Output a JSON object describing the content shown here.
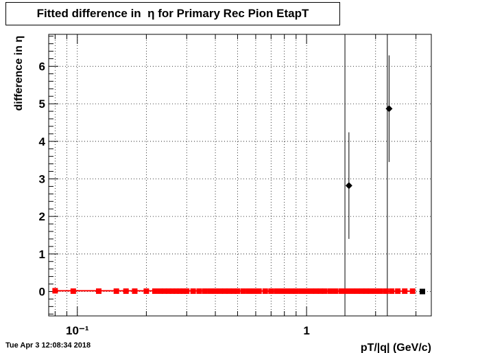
{
  "chart_data": {
    "type": "scatter",
    "title": "Fitted difference in  η for Primary Rec Pion EtapT",
    "xlabel": "pT/|q| (GeV/c)",
    "ylabel": "difference in  η",
    "x_scale": "log",
    "xlim": [
      0.075,
      3.5
    ],
    "ylim": [
      -0.65,
      6.85
    ],
    "grid": true,
    "x_tick_labels": [
      {
        "value": 0.1,
        "label": "10⁻¹"
      },
      {
        "value": 1,
        "label": "1"
      }
    ],
    "y_ticks": [
      0,
      1,
      2,
      3,
      4,
      5,
      6
    ],
    "vertical_lines": [
      1.47,
      2.25
    ],
    "series": [
      {
        "color": "#ff0000",
        "marker": "square",
        "x": [
          0.08,
          0.096,
          0.124,
          0.148,
          0.163,
          0.178,
          0.2,
          0.218,
          0.23,
          0.24,
          0.25,
          0.26,
          0.27,
          0.28,
          0.29,
          0.3,
          0.32,
          0.34,
          0.36,
          0.38,
          0.4,
          0.42,
          0.44,
          0.46,
          0.48,
          0.5,
          0.53,
          0.56,
          0.59,
          0.62,
          0.66,
          0.7,
          0.74,
          0.78,
          0.82,
          0.86,
          0.9,
          0.95,
          1.0,
          1.05,
          1.1,
          1.15,
          1.2,
          1.27,
          1.34,
          1.42,
          1.5,
          1.58,
          1.66,
          1.74,
          1.82,
          1.9,
          2.0,
          2.1,
          2.22,
          2.35,
          2.5,
          2.68,
          2.9
        ],
        "y": [
          0.02,
          0.01,
          0.01,
          0.01,
          0.01,
          0.01,
          0.01,
          0.01,
          0.01,
          0.01,
          0.01,
          0.01,
          0.01,
          0.01,
          0.01,
          0.01,
          0.01,
          0.01,
          0.01,
          0.01,
          0.01,
          0.01,
          0.01,
          0.01,
          0.01,
          0.01,
          0.01,
          0.01,
          0.01,
          0.01,
          0.01,
          0.01,
          0.01,
          0.01,
          0.01,
          0.01,
          0.01,
          0.01,
          0.01,
          0.01,
          0.01,
          0.01,
          0.01,
          0.01,
          0.01,
          0.01,
          0.01,
          0.01,
          0.01,
          0.01,
          0.01,
          0.01,
          0.01,
          0.01,
          0.01,
          0.01,
          0.01,
          0.01,
          0.01
        ]
      },
      {
        "color": "#000000",
        "marker": "diamond",
        "x": [
          1.53,
          2.29
        ],
        "y": [
          2.82,
          4.87
        ],
        "err": [
          1.42,
          1.42
        ]
      },
      {
        "color": "#000000",
        "marker": "square",
        "x": [
          3.2
        ],
        "y": [
          0.0
        ]
      }
    ],
    "timestamp": "Tue Apr  3 12:08:34 2018"
  }
}
